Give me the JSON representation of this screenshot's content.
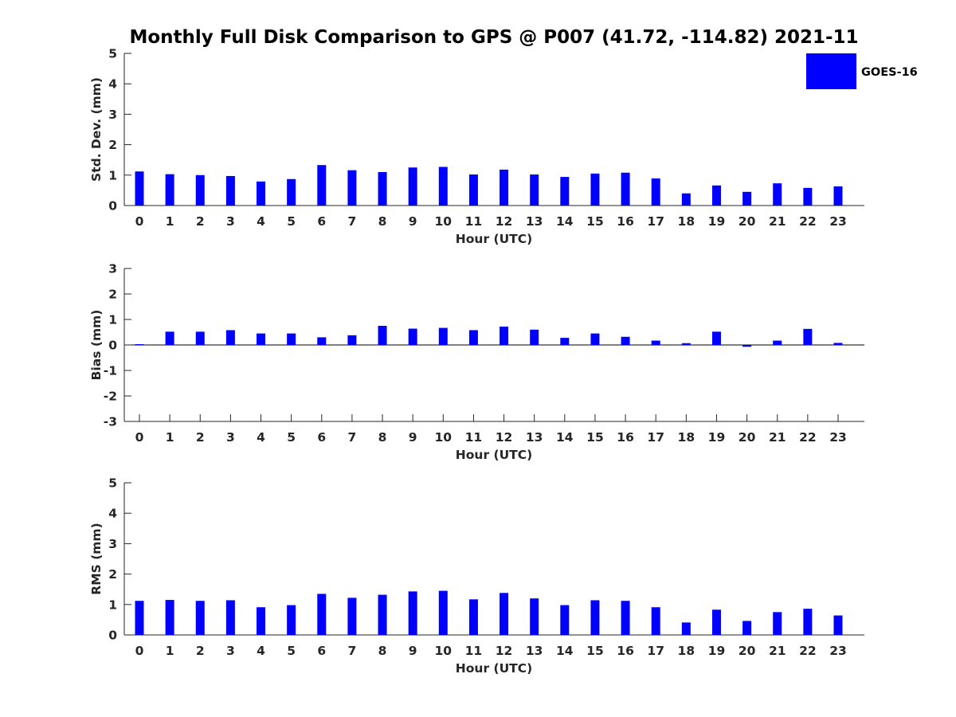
{
  "chart_data": {
    "type": "bar",
    "title": "Monthly Full Disk Comparison to GPS @ P007 (41.72, -114.82) 2021-11",
    "legend": {
      "label": "GOES-16",
      "placement": "top-right"
    },
    "bar_color": "#0000ff",
    "categories": [
      "0",
      "1",
      "2",
      "3",
      "4",
      "5",
      "6",
      "7",
      "8",
      "9",
      "10",
      "11",
      "12",
      "13",
      "14",
      "15",
      "16",
      "17",
      "18",
      "19",
      "20",
      "21",
      "22",
      "23"
    ],
    "panels": [
      {
        "id": "std",
        "xlabel": "Hour (UTC)",
        "ylabel": "Std. Dev. (mm)",
        "ylim": [
          0,
          5
        ],
        "yticks": [
          "0",
          "1",
          "2",
          "3",
          "4",
          "5"
        ],
        "series": [
          {
            "name": "GOES-16",
            "values": [
              1.12,
              1.03,
              1.0,
              0.97,
              0.79,
              0.87,
              1.33,
              1.16,
              1.1,
              1.25,
              1.27,
              1.02,
              1.18,
              1.02,
              0.94,
              1.05,
              1.08,
              0.89,
              0.4,
              0.66,
              0.45,
              0.73,
              0.58,
              0.63
            ]
          }
        ]
      },
      {
        "id": "bias",
        "xlabel": "Hour (UTC)",
        "ylabel": "Bias (mm)",
        "ylim": [
          -3,
          3
        ],
        "yticks": [
          "-3",
          "-2",
          "-1",
          "0",
          "1",
          "2",
          "3"
        ],
        "series": [
          {
            "name": "GOES-16",
            "values": [
              0.03,
              0.52,
              0.52,
              0.58,
              0.45,
              0.45,
              0.3,
              0.38,
              0.75,
              0.64,
              0.67,
              0.58,
              0.72,
              0.6,
              0.28,
              0.45,
              0.32,
              0.17,
              0.07,
              0.52,
              -0.07,
              0.17,
              0.63,
              0.08
            ]
          }
        ]
      },
      {
        "id": "rms",
        "xlabel": "Hour (UTC)",
        "ylabel": "RMS (mm)",
        "ylim": [
          0,
          5
        ],
        "yticks": [
          "0",
          "1",
          "2",
          "3",
          "4",
          "5"
        ],
        "series": [
          {
            "name": "GOES-16",
            "values": [
              1.12,
              1.15,
              1.12,
              1.14,
              0.91,
              0.98,
              1.35,
              1.22,
              1.32,
              1.43,
              1.45,
              1.17,
              1.38,
              1.2,
              0.98,
              1.14,
              1.12,
              0.91,
              0.41,
              0.83,
              0.46,
              0.75,
              0.86,
              0.64
            ]
          }
        ]
      }
    ]
  }
}
